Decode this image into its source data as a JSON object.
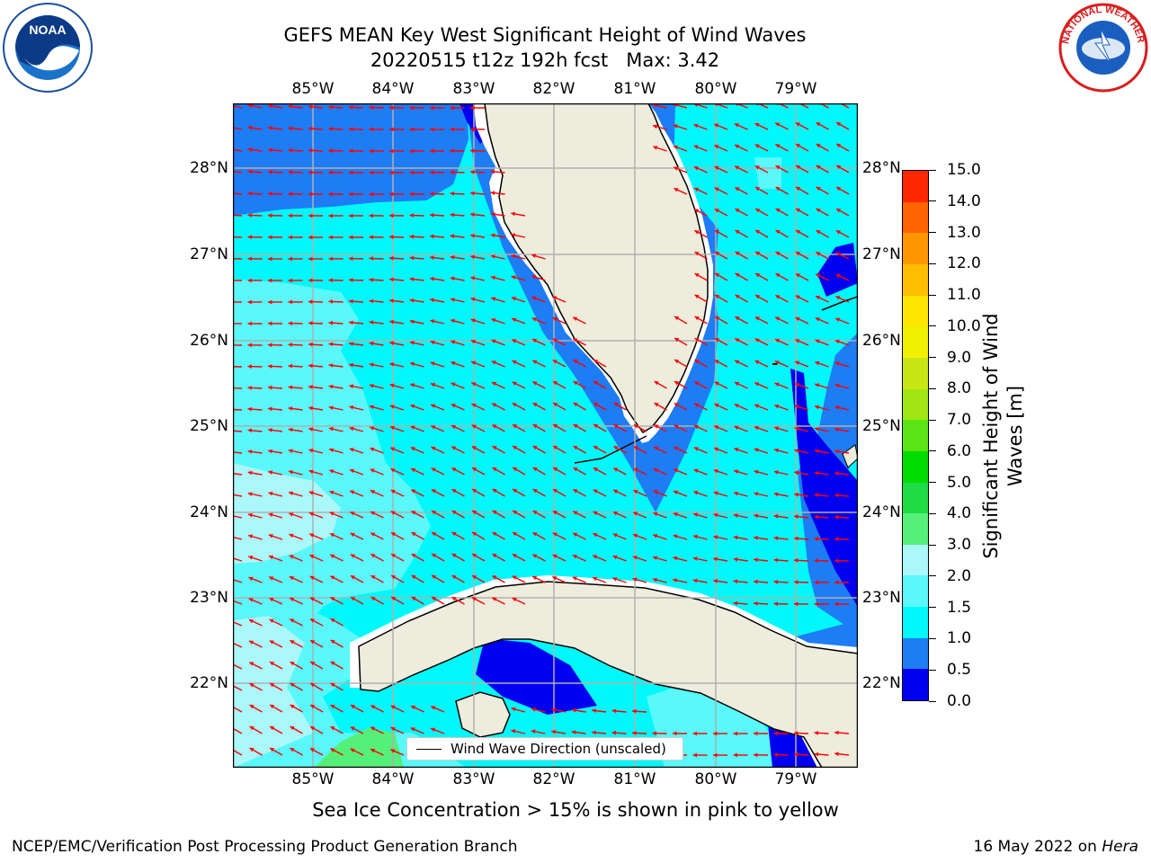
{
  "title": {
    "line1": "GEFS MEAN Key West Significant Height of Wind Waves",
    "line2": "20220515 t12z 192h fcst   Max: 3.42"
  },
  "axes": {
    "lon_labels": [
      "85°W",
      "84°W",
      "83°W",
      "82°W",
      "81°W",
      "80°W",
      "79°W"
    ],
    "lat_labels": [
      "28°N",
      "27°N",
      "26°N",
      "25°N",
      "24°N",
      "23°N",
      "22°N"
    ]
  },
  "colorbar": {
    "label": "Significant Height of Wind Waves [m]",
    "ticks": [
      "0.0",
      "0.5",
      "1.0",
      "1.5",
      "2.0",
      "3.0",
      "4.0",
      "5.0",
      "6.0",
      "7.0",
      "8.0",
      "9.0",
      "10.0",
      "11.0",
      "12.0",
      "13.0",
      "14.0",
      "15.0"
    ],
    "colors": [
      "#0000f0",
      "#1e7cf5",
      "#00f8fa",
      "#5af8fa",
      "#aaf8fa",
      "#55f07a",
      "#1edc46",
      "#00dc00",
      "#5ae614",
      "#a0e614",
      "#c8e614",
      "#f0f000",
      "#ffe600",
      "#ffbe00",
      "#ff9600",
      "#ff6400",
      "#ff2800"
    ]
  },
  "legend": {
    "label": "Wind Wave Direction (unscaled)"
  },
  "note": "Sea Ice Concentration > 15% is shown in pink to yellow",
  "footer": {
    "left": "NCEP/EMC/Verification Post Processing Product Generation Branch",
    "right_prefix": "16 May 2022 on ",
    "right_host": "Hera"
  },
  "logos": {
    "left": "NOAA",
    "right": "NATIONAL WEATHER SERVICE"
  },
  "colors": {
    "land": "#eeecdc",
    "coast": "#000000",
    "grid": "#b0b0b0",
    "arrow": "#ff0000"
  }
}
